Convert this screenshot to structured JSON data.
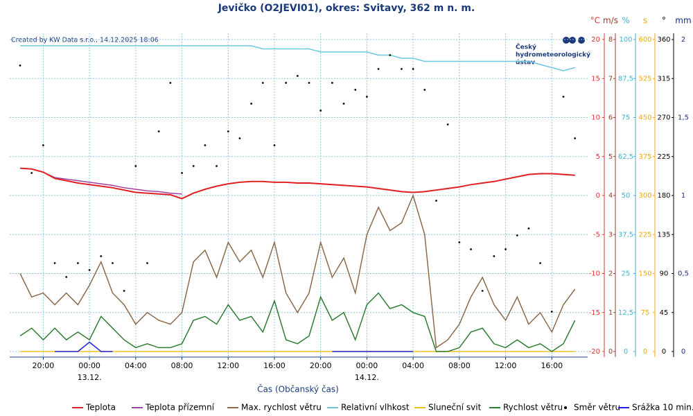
{
  "chart_data": {
    "type": "line",
    "title": "Jevičko (O2JEVI01), okres: Svitavy, 362 m n. m.",
    "credit": "Created by KW Data s.r.o., 14.12.2025 18:06",
    "logo_text": [
      "Český",
      "hydrometeorologický",
      "ústav"
    ],
    "x_label": "Čas (Občanský čas)",
    "x": [
      18,
      19,
      20,
      21,
      22,
      23,
      24,
      25,
      26,
      27,
      28,
      29,
      30,
      31,
      32,
      33,
      34,
      35,
      36,
      37,
      38,
      39,
      40,
      41,
      42,
      43,
      44,
      45,
      46,
      47,
      48,
      49,
      50,
      51,
      52,
      53,
      54,
      55,
      56,
      57,
      58,
      59,
      60,
      61,
      62,
      63,
      64,
      65,
      66
    ],
    "xlim": [
      17.1,
      67.1
    ],
    "xticks": [
      {
        "value": 20,
        "label": "20:00"
      },
      {
        "value": 24,
        "label": "00:00"
      },
      {
        "value": 28,
        "label": "04:00"
      },
      {
        "value": 32,
        "label": "08:00"
      },
      {
        "value": 36,
        "label": "12:00"
      },
      {
        "value": 40,
        "label": "16:00"
      },
      {
        "value": 44,
        "label": "20:00"
      },
      {
        "value": 48,
        "label": "00:00"
      },
      {
        "value": 52,
        "label": "04:00"
      },
      {
        "value": 56,
        "label": "08:00"
      },
      {
        "value": 60,
        "label": "12:00"
      },
      {
        "value": 64,
        "label": "16:00"
      }
    ],
    "x_date_labels": [
      {
        "value": 24,
        "label": "13.12."
      },
      {
        "value": 48,
        "label": "14.12."
      }
    ],
    "grid": true,
    "axes": [
      {
        "unit": "°C",
        "color": "#e03030",
        "lim": [
          -20,
          20
        ],
        "ticks": [
          -20,
          -15,
          -10,
          -5,
          0,
          5,
          10,
          15,
          20
        ]
      },
      {
        "unit": "m/s",
        "color": "#9a3a2a",
        "lim": [
          0,
          8
        ],
        "ticks": [
          0,
          1,
          2,
          3,
          4,
          5,
          6,
          7,
          8
        ]
      },
      {
        "unit": "%",
        "color": "#40b0d0",
        "lim": [
          0,
          100
        ],
        "ticks": [
          0,
          {
            "value": 12.5,
            "label": "12,5"
          },
          25,
          {
            "value": 37.5,
            "label": "37,5"
          },
          50,
          {
            "value": 62.5,
            "label": "62,5"
          },
          75,
          {
            "value": 87.5,
            "label": "87,5"
          },
          100
        ]
      },
      {
        "unit": "s",
        "color": "#f0a800",
        "lim": [
          0,
          600
        ],
        "ticks": [
          0,
          75,
          150,
          225,
          300,
          375,
          450,
          525,
          600
        ]
      },
      {
        "unit": "°",
        "color": "#000000",
        "lim": [
          0,
          360
        ],
        "ticks": [
          0,
          45,
          90,
          135,
          180,
          225,
          270,
          315,
          360
        ]
      },
      {
        "unit": "mm",
        "color": "#1a2a8a",
        "lim": [
          0,
          2
        ],
        "ticks": [
          0,
          {
            "value": 0.5,
            "label": "0,5"
          },
          1,
          {
            "value": 1.5,
            "label": "1,5"
          },
          2
        ]
      }
    ],
    "series": [
      {
        "name": "Teplota",
        "color": "#e02020",
        "axis": 0,
        "values": [
          3.5,
          3.4,
          3.0,
          2.2,
          1.9,
          1.6,
          1.4,
          1.2,
          1.0,
          0.7,
          0.4,
          0.3,
          0.2,
          0.1,
          -0.4,
          0.3,
          0.8,
          1.2,
          1.5,
          1.7,
          1.8,
          1.8,
          1.7,
          1.7,
          1.6,
          1.6,
          1.5,
          1.4,
          1.3,
          1.2,
          1.1,
          0.9,
          0.7,
          0.5,
          0.4,
          0.5,
          0.7,
          0.9,
          1.1,
          1.4,
          1.6,
          1.8,
          2.1,
          2.4,
          2.7,
          2.8,
          2.8,
          2.7,
          2.6
        ]
      },
      {
        "name": "Teplota přízemní",
        "color": "#a040a0",
        "axis": 0,
        "values": [
          3.5,
          3.4,
          3.0,
          2.3,
          2.1,
          1.9,
          1.7,
          1.5,
          1.3,
          1.0,
          0.8,
          0.6,
          0.5,
          0.3,
          0.2,
          null,
          null,
          null,
          null,
          null,
          null,
          null,
          null,
          null,
          null,
          null,
          null,
          null,
          null,
          null,
          null,
          null,
          null,
          null,
          null,
          null,
          null,
          null,
          null,
          null,
          null,
          null,
          null,
          null,
          null,
          null,
          null,
          null,
          null
        ]
      },
      {
        "name": "Max. rychlost větru",
        "color": "#8b6a4a",
        "axis": 1,
        "values": [
          2.0,
          1.4,
          1.5,
          1.2,
          1.5,
          1.2,
          1.7,
          2.3,
          1.5,
          1.2,
          0.7,
          1.0,
          0.8,
          0.7,
          1.0,
          2.3,
          2.6,
          1.9,
          2.8,
          2.3,
          2.6,
          1.9,
          2.8,
          1.5,
          1.0,
          1.5,
          2.8,
          1.9,
          2.4,
          1.5,
          3.0,
          3.7,
          3.1,
          3.3,
          4.0,
          3.0,
          0.1,
          0.3,
          0.7,
          1.4,
          1.9,
          1.2,
          0.8,
          1.4,
          0.7,
          1.0,
          0.5,
          1.2,
          1.6
        ]
      },
      {
        "name": "Relativní vlhkost",
        "color": "#6cc8e0",
        "axis": 2,
        "values": [
          98,
          98,
          98,
          98,
          98,
          98,
          98,
          98,
          98,
          98,
          98,
          98,
          98,
          98,
          98,
          98,
          98,
          98,
          98,
          98,
          98,
          97,
          97,
          97,
          97,
          97,
          96,
          96,
          96,
          96,
          96,
          95,
          95,
          94,
          94,
          93,
          93,
          93,
          93,
          93,
          93,
          93,
          93,
          93,
          93,
          92,
          91,
          90,
          91
        ]
      },
      {
        "name": "Sluneční svit",
        "color": "#f0c020",
        "axis": 3,
        "values": [
          0,
          0,
          0,
          0,
          0,
          0,
          0,
          0,
          0,
          0,
          0,
          0,
          0,
          0,
          0,
          0,
          0,
          0,
          0,
          0,
          0,
          0,
          0,
          0,
          0,
          0,
          0,
          0,
          0,
          0,
          0,
          0,
          0,
          0,
          0,
          0,
          0,
          0,
          0,
          0,
          0,
          0,
          0,
          0,
          0,
          0,
          0,
          0,
          0
        ]
      },
      {
        "name": "Rychlost větru",
        "color": "#2e7d32",
        "axis": 1,
        "values": [
          0.4,
          0.6,
          0.3,
          0.6,
          0.3,
          0.5,
          0.3,
          0.9,
          0.6,
          0.3,
          0.1,
          0.2,
          0.1,
          0.1,
          0.2,
          0.8,
          0.9,
          0.7,
          1.2,
          0.8,
          0.9,
          0.5,
          1.3,
          0.3,
          0.2,
          0.4,
          1.4,
          0.8,
          1.0,
          0.3,
          1.2,
          1.5,
          1.1,
          1.2,
          1.0,
          0.9,
          0.0,
          0.0,
          0.1,
          0.5,
          0.6,
          0.2,
          0.1,
          0.3,
          0.1,
          0.2,
          0.0,
          0.2,
          0.8
        ]
      },
      {
        "name": "Směr větru",
        "color": "#000000",
        "axis": 4,
        "style": "dots",
        "values": [
          330,
          206,
          238,
          102,
          86,
          102,
          94,
          110,
          102,
          70,
          214,
          102,
          254,
          310,
          206,
          214,
          238,
          214,
          254,
          246,
          286,
          310,
          238,
          310,
          318,
          310,
          278,
          310,
          286,
          302,
          294,
          326,
          342,
          326,
          326,
          302,
          174,
          262,
          126,
          118,
          70,
          110,
          118,
          134,
          142,
          102,
          46,
          294,
          246
        ]
      },
      {
        "name": "Srážka 10 min.",
        "color": "#2020e0",
        "axis": 5,
        "values": [
          null,
          null,
          null,
          0,
          0,
          0,
          0.06,
          0,
          0,
          null,
          null,
          null,
          null,
          null,
          null,
          null,
          null,
          null,
          null,
          null,
          null,
          null,
          null,
          null,
          null,
          null,
          null,
          0,
          0,
          0,
          0,
          0,
          0,
          0,
          0,
          null,
          null,
          null,
          null,
          null,
          null,
          null,
          null,
          null,
          null,
          null,
          null,
          null,
          null
        ]
      }
    ]
  }
}
